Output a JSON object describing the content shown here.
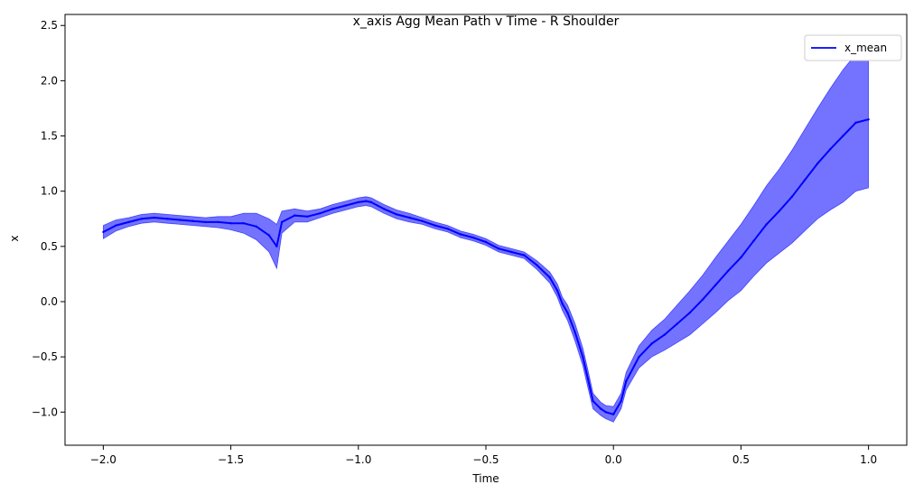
{
  "chart_data": {
    "type": "line",
    "title": "x_axis Agg Mean Path v Time - R Shoulder",
    "xlabel": "Time",
    "ylabel": "x",
    "xlim": [
      -2.15,
      1.15
    ],
    "ylim": [
      -1.3,
      2.6
    ],
    "xticks": [
      -2.0,
      -1.5,
      -1.0,
      -0.5,
      0.0,
      0.5,
      1.0
    ],
    "xtick_labels": [
      "−2.0",
      "−1.5",
      "−1.0",
      "−0.5",
      "0.0",
      "0.5",
      "1.0"
    ],
    "yticks": [
      -1.0,
      -0.5,
      0.0,
      0.5,
      1.0,
      1.5,
      2.0,
      2.5
    ],
    "ytick_labels": [
      "−1.0",
      "−0.5",
      "0.0",
      "0.5",
      "1.0",
      "1.5",
      "2.0",
      "2.5"
    ],
    "grid": false,
    "legend_position": "top-right",
    "color": "#0000ff",
    "series": [
      {
        "name": "x_mean",
        "x": [
          -2.0,
          -1.95,
          -1.9,
          -1.85,
          -1.8,
          -1.75,
          -1.7,
          -1.65,
          -1.6,
          -1.55,
          -1.5,
          -1.45,
          -1.4,
          -1.35,
          -1.32,
          -1.3,
          -1.25,
          -1.2,
          -1.15,
          -1.1,
          -1.05,
          -1.0,
          -0.97,
          -0.95,
          -0.9,
          -0.85,
          -0.8,
          -0.75,
          -0.7,
          -0.65,
          -0.6,
          -0.55,
          -0.5,
          -0.45,
          -0.4,
          -0.35,
          -0.3,
          -0.25,
          -0.22,
          -0.2,
          -0.18,
          -0.15,
          -0.12,
          -0.1,
          -0.08,
          -0.05,
          -0.03,
          0.0,
          0.03,
          0.05,
          0.1,
          0.15,
          0.2,
          0.25,
          0.3,
          0.35,
          0.4,
          0.45,
          0.5,
          0.55,
          0.6,
          0.65,
          0.7,
          0.75,
          0.8,
          0.85,
          0.9,
          0.95,
          1.0
        ],
        "y": [
          0.63,
          0.69,
          0.72,
          0.75,
          0.76,
          0.75,
          0.74,
          0.73,
          0.72,
          0.72,
          0.71,
          0.71,
          0.68,
          0.6,
          0.5,
          0.72,
          0.78,
          0.77,
          0.8,
          0.84,
          0.87,
          0.9,
          0.91,
          0.9,
          0.84,
          0.79,
          0.76,
          0.73,
          0.69,
          0.66,
          0.61,
          0.58,
          0.54,
          0.48,
          0.45,
          0.42,
          0.33,
          0.22,
          0.1,
          -0.02,
          -0.1,
          -0.28,
          -0.5,
          -0.7,
          -0.9,
          -0.97,
          -1.0,
          -1.02,
          -0.9,
          -0.72,
          -0.5,
          -0.38,
          -0.3,
          -0.2,
          -0.1,
          0.02,
          0.15,
          0.28,
          0.4,
          0.55,
          0.7,
          0.82,
          0.95,
          1.1,
          1.25,
          1.38,
          1.5,
          1.62,
          1.65
        ],
        "spread": [
          0.06,
          0.05,
          0.04,
          0.04,
          0.04,
          0.04,
          0.04,
          0.04,
          0.04,
          0.05,
          0.06,
          0.09,
          0.12,
          0.15,
          0.2,
          0.1,
          0.06,
          0.05,
          0.04,
          0.04,
          0.04,
          0.04,
          0.04,
          0.04,
          0.04,
          0.04,
          0.04,
          0.03,
          0.03,
          0.03,
          0.03,
          0.03,
          0.03,
          0.03,
          0.03,
          0.03,
          0.04,
          0.05,
          0.06,
          0.06,
          0.07,
          0.08,
          0.08,
          0.08,
          0.07,
          0.06,
          0.06,
          0.07,
          0.07,
          0.08,
          0.1,
          0.12,
          0.14,
          0.17,
          0.2,
          0.22,
          0.25,
          0.27,
          0.3,
          0.32,
          0.35,
          0.38,
          0.42,
          0.46,
          0.5,
          0.55,
          0.6,
          0.62,
          0.62
        ]
      }
    ]
  }
}
